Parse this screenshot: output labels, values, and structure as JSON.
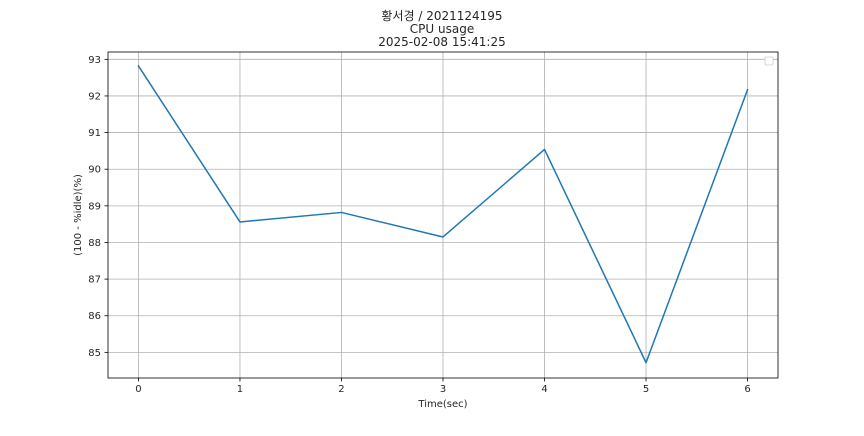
{
  "chart_data": {
    "type": "line",
    "title_lines": [
      "황서경 / 2021124195",
      "CPU usage",
      "2025-02-08 15:41:25"
    ],
    "xlabel": "Time(sec)",
    "ylabel": "(100 - %idle)(%)",
    "x": [
      0,
      1,
      2,
      3,
      4,
      5,
      6
    ],
    "series": [
      {
        "values": [
          92.82,
          88.56,
          88.82,
          88.15,
          90.54,
          84.72,
          92.17
        ],
        "color": "#1f77b4"
      }
    ],
    "xlim": [
      -0.3,
      6.3
    ],
    "ylim": [
      84.3,
      93.2
    ],
    "x_ticks": [
      0,
      1,
      2,
      3,
      4,
      5,
      6
    ],
    "y_ticks": [
      85,
      86,
      87,
      88,
      89,
      90,
      91,
      92,
      93
    ],
    "grid": true,
    "legend": {
      "placement": "top-right",
      "entries": []
    }
  }
}
